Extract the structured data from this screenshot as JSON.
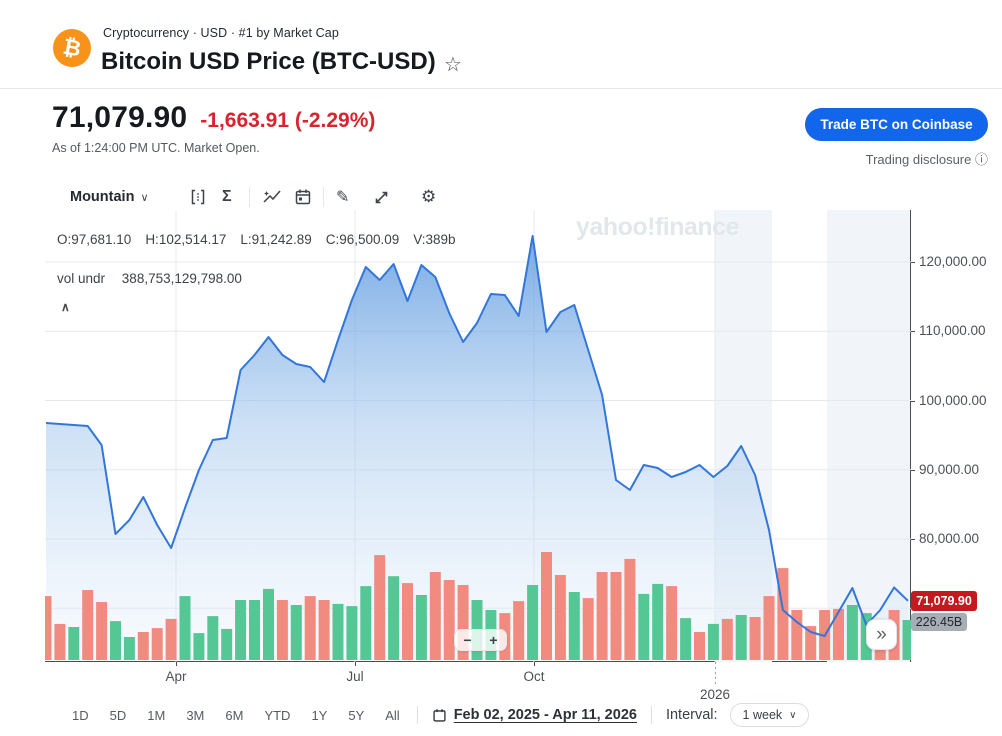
{
  "icons": {
    "star": "☆",
    "info": "ⓘ",
    "sigma": "Σ",
    "pencil": "✎",
    "gear": "⚙",
    "next": "»",
    "collapse": "∧",
    "caret_down": "∨",
    "minus": "−",
    "plus": "+",
    "btc": "₿"
  },
  "colors": {
    "brand_orange": "#f7931a",
    "accent_blue": "#1266eb",
    "down_red": "#d9232e",
    "badge_red": "#c41a1f",
    "badge_gray": "#a7adb5",
    "line_blue": "#3276d9",
    "bar_red": "#f18b80",
    "bar_green": "#55c795",
    "grid": "#e5e8ec",
    "band": "#f1f5f9"
  },
  "header": {
    "breadcrumb": "Cryptocurrency · USD · #1 by Market Cap",
    "title": "Bitcoin USD Price (BTC-USD)"
  },
  "quote": {
    "price": "71,079.90",
    "change": "-1,663.91",
    "change_pct": "(-2.29%)",
    "asof": "As of 1:24:00 PM UTC. Market Open.",
    "trade_button": "Trade BTC on Coinbase",
    "disclosure": "Trading disclosure"
  },
  "chart_toolbar": {
    "chart_type": "Mountain",
    "icons": [
      "chart-interval-icon",
      "sum-icon",
      "indicators-icon",
      "events-icon",
      "draw-icon",
      "expand-icon",
      "settings-icon"
    ]
  },
  "chart": {
    "ohlc": [
      "O:97,681.10",
      "H:102,514.17",
      "L:91,242.89",
      "C:96,500.09",
      "V:389b"
    ],
    "vol_label": "vol undr",
    "vol_value": "388,753,129,798.00",
    "watermark": "yahoo!finance",
    "price_badge": "71,079.90",
    "cap_badge": "226.45B"
  },
  "chart_data": {
    "type": "area",
    "title": "Bitcoin USD Price (BTC-USD)",
    "x_unit": "1 week",
    "x_range": [
      "Feb 02, 2025",
      "Apr 11, 2026"
    ],
    "x_tick_labels": [
      "Apr",
      "Jul",
      "Oct",
      "2026"
    ],
    "y_ticks": [
      120000,
      110000,
      100000,
      90000,
      80000
    ],
    "y_tick_labels": [
      "120,000.00",
      "110,000.00",
      "100,000.00",
      "90,000.00",
      "80,000.00"
    ],
    "ylim": [
      62000,
      127500
    ],
    "last_price": 71079.9,
    "volume_max_b": 389,
    "prices": [
      96750,
      96610,
      96460,
      96320,
      93580,
      80720,
      82740,
      86060,
      82020,
      78700,
      84480,
      89960,
      94300,
      94590,
      104400,
      106570,
      109170,
      106570,
      105270,
      104840,
      102670,
      108740,
      114510,
      119280,
      117400,
      119710,
      114370,
      119570,
      117830,
      112630,
      108450,
      111190,
      115380,
      115230,
      112200,
      123750,
      109890,
      112780,
      113790,
      107290,
      100800,
      88520,
      87080,
      90690,
      90250,
      88950,
      89680,
      90690,
      88950,
      90540,
      93430,
      89240,
      81300,
      69750,
      68010,
      66570,
      65990,
      69460,
      72920,
      67580,
      69750,
      73000,
      71080
    ],
    "volume_b": [
      230,
      130,
      119,
      252,
      209,
      140,
      83,
      101,
      115,
      148,
      230,
      97,
      158,
      112,
      216,
      216,
      256,
      216,
      198,
      230,
      216,
      202,
      194,
      266,
      378,
      302,
      277,
      234,
      317,
      288,
      270,
      216,
      180,
      169,
      212,
      270,
      389,
      306,
      245,
      223,
      317,
      317,
      364,
      238,
      274,
      266,
      151,
      101,
      130,
      148,
      162,
      155,
      230,
      331,
      180,
      122,
      180,
      184,
      198,
      169,
      148,
      180,
      144
    ],
    "volume_colors": [
      "r",
      "r",
      "g",
      "r",
      "r",
      "g",
      "g",
      "r",
      "r",
      "r",
      "g",
      "g",
      "g",
      "g",
      "g",
      "g",
      "g",
      "r",
      "g",
      "r",
      "r",
      "g",
      "g",
      "g",
      "r",
      "g",
      "r",
      "g",
      "r",
      "r",
      "r",
      "g",
      "g",
      "r",
      "r",
      "g",
      "r",
      "r",
      "g",
      "r",
      "r",
      "r",
      "r",
      "g",
      "g",
      "r",
      "g",
      "r",
      "g",
      "r",
      "g",
      "r",
      "r",
      "r",
      "r",
      "r",
      "r",
      "r",
      "g",
      "g",
      "r",
      "r",
      "g"
    ]
  },
  "bottom": {
    "ranges": [
      "1D",
      "5D",
      "1M",
      "3M",
      "6M",
      "YTD",
      "1Y",
      "5Y",
      "All"
    ],
    "date_range": "Feb 02, 2025 - Apr 11, 2026",
    "interval_label": "Interval:",
    "interval_value": "1 week"
  }
}
